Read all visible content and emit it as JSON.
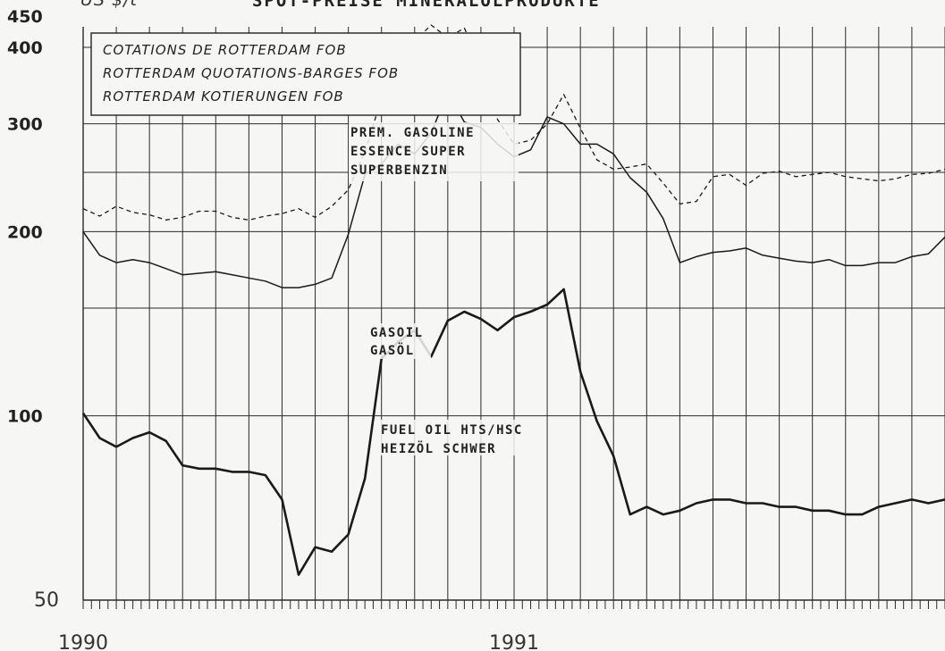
{
  "title_prefix": "US $/t",
  "title": "SPOT-PREISE MINERALÖLPRODUKTE",
  "legend_box": [
    "COTATIONS DE ROTTERDAM FOB",
    "ROTTERDAM QUOTATIONS-BARGES FOB",
    "ROTTERDAM KOTIERUNGEN FOB"
  ],
  "chart_data": {
    "type": "line",
    "title": "SPOT-PREISE MINERALÖLPRODUKTE",
    "ylabel": "US $/t",
    "yscale": "log",
    "ylim": [
      50,
      450
    ],
    "yticks": [
      50,
      100,
      200,
      300,
      400,
      450
    ],
    "xlim": [
      0,
      104
    ],
    "x_year_labels": [
      {
        "label": "1990",
        "x": 0
      },
      {
        "label": "1991",
        "x": 52
      }
    ],
    "grid": true,
    "series": [
      {
        "name": "PREM. GASOLINE / ESSENCE SUPER / SUPERBENZIN",
        "label_lines": [
          "PREM. GASOLINE",
          "ESSENCE SUPER",
          "SUPERBENZIN"
        ],
        "style": "dashed",
        "x": [
          0,
          2,
          4,
          6,
          8,
          10,
          12,
          14,
          16,
          18,
          20,
          22,
          24,
          26,
          28,
          30,
          32,
          34,
          36,
          38,
          40,
          42,
          44,
          46,
          48,
          50,
          52,
          54,
          56,
          58,
          60,
          62,
          64,
          66,
          68,
          70,
          72,
          74,
          76,
          78,
          80,
          82,
          84,
          86,
          88,
          90,
          92,
          94,
          96,
          98,
          100,
          102,
          104
        ],
        "values": [
          218,
          212,
          220,
          215,
          213,
          209,
          211,
          216,
          216,
          211,
          209,
          212,
          214,
          218,
          211,
          220,
          234,
          270,
          330,
          380,
          410,
          435,
          415,
          430,
          375,
          305,
          278,
          282,
          300,
          335,
          295,
          262,
          253,
          255,
          258,
          240,
          222,
          224,
          246,
          248,
          238,
          249,
          251,
          246,
          248,
          250,
          246,
          244,
          242,
          244,
          248,
          249,
          253
        ]
      },
      {
        "name": "GASOIL / GASÖL",
        "label_lines": [
          "GASOIL",
          "GASÖL"
        ],
        "style": "solid",
        "x": [
          0,
          2,
          4,
          6,
          8,
          10,
          12,
          14,
          16,
          18,
          20,
          22,
          24,
          26,
          28,
          30,
          32,
          34,
          36,
          38,
          40,
          42,
          44,
          46,
          48,
          50,
          52,
          54,
          56,
          58,
          60,
          62,
          64,
          66,
          68,
          70,
          72,
          74,
          76,
          78,
          80,
          82,
          84,
          86,
          88,
          90,
          92,
          94,
          96,
          98,
          100,
          102,
          104
        ],
        "values": [
          200,
          183,
          178,
          180,
          178,
          174,
          170,
          171,
          172,
          170,
          168,
          166,
          162,
          162,
          164,
          168,
          198,
          248,
          258,
          278,
          268,
          290,
          338,
          302,
          296,
          278,
          265,
          272,
          308,
          300,
          278,
          278,
          268,
          245,
          232,
          210,
          178,
          182,
          185,
          186,
          188,
          183,
          181,
          179,
          178,
          180,
          176,
          176,
          178,
          178,
          182,
          184,
          196
        ]
      },
      {
        "name": "FUEL OIL HTS/HSC / HEIZÖL SCHWER",
        "label_lines": [
          "FUEL OIL HTS/HSC",
          "HEIZÖL SCHWER"
        ],
        "style": "thick",
        "x": [
          0,
          2,
          4,
          6,
          8,
          10,
          12,
          14,
          16,
          18,
          20,
          22,
          24,
          26,
          28,
          30,
          32,
          34,
          36,
          38,
          40,
          42,
          44,
          46,
          48,
          50,
          52,
          54,
          56,
          58,
          60,
          62,
          64,
          66,
          68,
          70,
          72,
          74,
          76,
          78,
          80,
          82,
          84,
          86,
          88,
          90,
          92,
          94,
          96,
          98,
          100,
          102,
          104
        ],
        "values": [
          101,
          92,
          89,
          92,
          94,
          91,
          83,
          82,
          82,
          81,
          81,
          80,
          73,
          55,
          61,
          60,
          64,
          79,
          124,
          132,
          138,
          125,
          143,
          148,
          144,
          138,
          145,
          148,
          152,
          161,
          118,
          98,
          86,
          69,
          71,
          69,
          70,
          72,
          73,
          73,
          72,
          72,
          71,
          71,
          70,
          70,
          69,
          69,
          71,
          72,
          73,
          72,
          73
        ]
      }
    ]
  },
  "colors": {
    "background": "#f6f6f4",
    "grid": "#2a2a2a",
    "line": "#1a1a1a"
  }
}
